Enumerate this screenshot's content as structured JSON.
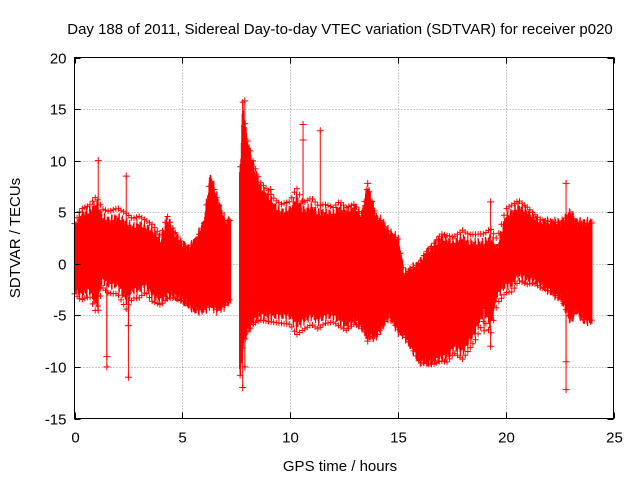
{
  "chart_data": {
    "type": "scatter",
    "title": "Day 188 of 2011, Sidereal Day-to-day VTEC variation (SDTVAR) for receiver p020",
    "xlabel": "GPS time / hours",
    "ylabel": "SDTVAR / TECUs",
    "xlim": [
      0,
      25
    ],
    "ylim": [
      -15,
      20
    ],
    "xticks": [
      0,
      5,
      10,
      15,
      20,
      25
    ],
    "yticks": [
      -15,
      -10,
      -5,
      0,
      5,
      10,
      15,
      20
    ],
    "xtick_labels": [
      "0",
      "5",
      "10",
      "15",
      "20",
      "25"
    ],
    "ytick_labels": [
      "-15",
      "-10",
      "-5",
      "0",
      "5",
      "10",
      "15",
      "20"
    ],
    "grid": true,
    "marker": "+",
    "color": "#ff0000",
    "envelope": {
      "x": [
        0.0,
        0.3,
        0.7,
        1.0,
        1.3,
        1.6,
        2.0,
        2.4,
        2.7,
        3.0,
        3.3,
        3.6,
        4.0,
        4.3,
        4.6,
        5.0,
        5.3,
        5.6,
        6.0,
        6.3,
        6.6,
        7.0,
        7.2,
        7.7,
        7.8,
        8.0,
        8.3,
        8.6,
        9.0,
        9.3,
        9.6,
        10.0,
        10.3,
        10.6,
        11.0,
        11.3,
        11.6,
        12.0,
        12.3,
        12.6,
        13.0,
        13.3,
        13.6,
        14.0,
        14.3,
        14.6,
        15.0,
        15.3,
        15.6,
        16.0,
        16.3,
        16.6,
        17.0,
        17.3,
        17.6,
        18.0,
        18.3,
        18.6,
        19.0,
        19.3,
        19.6,
        20.0,
        20.3,
        20.6,
        21.0,
        21.3,
        21.6,
        22.0,
        22.3,
        22.6,
        23.0,
        23.3,
        23.6,
        24.0
      ],
      "upper": [
        3.5,
        4.8,
        5.0,
        5.8,
        4.5,
        4.2,
        4.5,
        4.0,
        3.5,
        3.8,
        3.5,
        3.2,
        2.2,
        4.3,
        3.0,
        1.8,
        1.5,
        2.2,
        4.0,
        8.5,
        6.5,
        4.0,
        4.2,
        9.5,
        15.5,
        12.0,
        9.5,
        7.5,
        6.5,
        5.5,
        5.0,
        5.2,
        6.5,
        5.0,
        5.5,
        4.8,
        5.0,
        4.8,
        5.5,
        5.0,
        5.5,
        4.5,
        7.5,
        4.5,
        4.0,
        3.0,
        2.5,
        -1.0,
        -0.5,
        0.0,
        1.0,
        1.5,
        2.5,
        2.2,
        2.0,
        2.5,
        2.0,
        2.0,
        2.0,
        2.5,
        1.5,
        4.5,
        5.0,
        5.5,
        5.0,
        4.5,
        4.0,
        4.0,
        4.0,
        4.0,
        5.0,
        4.0,
        4.0,
        4.0
      ],
      "lower": [
        -2.5,
        -3.0,
        -2.5,
        -4.0,
        -1.5,
        -2.0,
        -2.0,
        -3.5,
        -2.5,
        -2.5,
        -2.0,
        -3.0,
        -3.5,
        -3.0,
        -3.0,
        -3.5,
        -4.0,
        -4.5,
        -4.5,
        -4.0,
        -4.5,
        -4.0,
        -3.5,
        -11.0,
        -8.0,
        -6.5,
        -5.5,
        -5.0,
        -5.0,
        -5.0,
        -5.0,
        -5.0,
        -6.0,
        -5.5,
        -5.0,
        -5.5,
        -5.0,
        -5.0,
        -5.5,
        -6.0,
        -5.5,
        -6.0,
        -7.0,
        -7.0,
        -6.0,
        -5.0,
        -6.5,
        -7.0,
        -8.0,
        -9.5,
        -9.5,
        -9.5,
        -9.0,
        -9.0,
        -8.0,
        -8.5,
        -7.5,
        -6.5,
        -4.5,
        -6.0,
        -3.0,
        -2.0,
        -2.0,
        -1.0,
        -1.5,
        -1.5,
        -2.0,
        -2.5,
        -3.0,
        -3.5,
        -5.5,
        -4.5,
        -5.5,
        -5.5
      ]
    },
    "spikes": [
      {
        "x": 1.1,
        "y": 10.0
      },
      {
        "x": 1.1,
        "y": -4.5
      },
      {
        "x": 2.4,
        "y": 8.5
      },
      {
        "x": 2.5,
        "y": -11.0
      },
      {
        "x": 2.5,
        "y": -6.0
      },
      {
        "x": 1.5,
        "y": -9.0
      },
      {
        "x": 1.5,
        "y": -10.0
      },
      {
        "x": 7.8,
        "y": -12.0
      },
      {
        "x": 7.9,
        "y": 15.8
      },
      {
        "x": 7.9,
        "y": -10.0
      },
      {
        "x": 9.1,
        "y": 7.2
      },
      {
        "x": 10.6,
        "y": 13.5
      },
      {
        "x": 10.6,
        "y": 12.0
      },
      {
        "x": 11.4,
        "y": 12.9
      },
      {
        "x": 13.6,
        "y": -7.5
      },
      {
        "x": 13.6,
        "y": 7.8
      },
      {
        "x": 19.3,
        "y": 6.0
      },
      {
        "x": 19.3,
        "y": -8.0
      },
      {
        "x": 19.0,
        "y": -6.5
      },
      {
        "x": 22.8,
        "y": 7.8
      },
      {
        "x": 22.8,
        "y": -12.2
      },
      {
        "x": 22.8,
        "y": -9.5
      }
    ]
  }
}
